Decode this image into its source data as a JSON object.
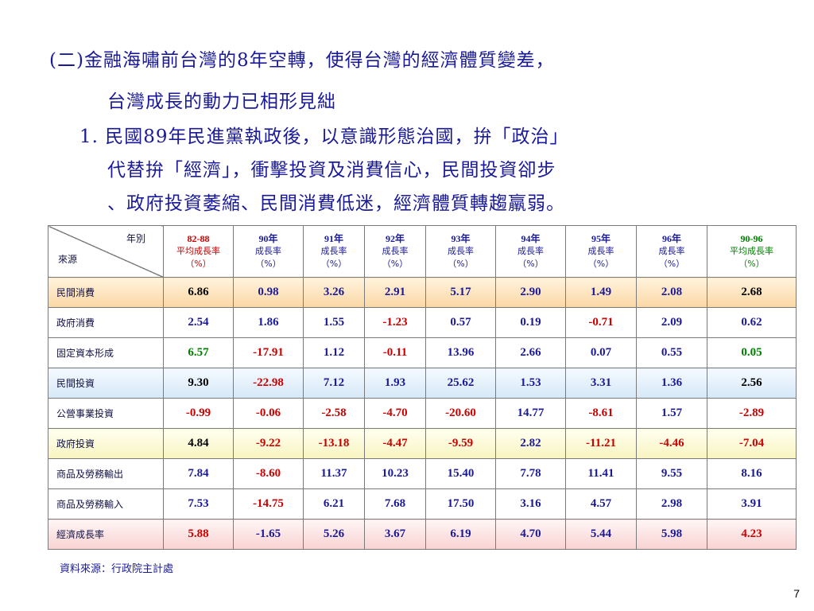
{
  "text": {
    "line1": "(二)金融海嘯前台灣的8年空轉，使得台灣的經濟體質變差，",
    "line2": "台灣成長的動力已相形見絀",
    "line3": "1. 民國89年民進黨執政後，以意識形態治國，拚「政治」",
    "line4": "代替拚「經濟」，衝擊投資及消費信心，民間投資卻步",
    "line5": "、政府投資萎縮、民間消費低迷，經濟體質轉趨羸弱。"
  },
  "table": {
    "corner_top": "年別",
    "corner_bottom": "來源",
    "headers": [
      {
        "top": "82-88",
        "mid": "平均成長率",
        "bot": "（%）",
        "color": "#cc0000"
      },
      {
        "top": "90年",
        "mid": "成長率",
        "bot": "（%）",
        "color": "#1a1a99"
      },
      {
        "top": "91年",
        "mid": "成長率",
        "bot": "（%）",
        "color": "#1a1a99"
      },
      {
        "top": "92年",
        "mid": "成長率",
        "bot": "（%）",
        "color": "#1a1a99"
      },
      {
        "top": "93年",
        "mid": "成長率",
        "bot": "（%）",
        "color": "#1a1a99"
      },
      {
        "top": "94年",
        "mid": "成長率",
        "bot": "（%）",
        "color": "#1a1a99"
      },
      {
        "top": "95年",
        "mid": "成長率",
        "bot": "（%）",
        "color": "#1a1a99"
      },
      {
        "top": "96年",
        "mid": "成長率",
        "bot": "（%）",
        "color": "#1a1a99"
      },
      {
        "top": "90-96",
        "mid": "平均成長率",
        "bot": "（%）",
        "color": "#008000"
      }
    ],
    "rows": [
      {
        "label": "民間消費",
        "values": [
          "6.86",
          "0.98",
          "3.26",
          "2.91",
          "5.17",
          "2.90",
          "1.49",
          "2.08",
          "2.68"
        ]
      },
      {
        "label": "政府消費",
        "values": [
          "2.54",
          "1.86",
          "1.55",
          "-1.23",
          "0.57",
          "0.19",
          "-0.71",
          "2.09",
          "0.62"
        ]
      },
      {
        "label": "固定資本形成",
        "values": [
          "6.57",
          "-17.91",
          "1.12",
          "-0.11",
          "13.96",
          "2.66",
          "0.07",
          "0.55",
          "0.05"
        ]
      },
      {
        "label": "民間投資",
        "values": [
          "9.30",
          "-22.98",
          "7.12",
          "1.93",
          "25.62",
          "1.53",
          "3.31",
          "1.36",
          "2.56"
        ]
      },
      {
        "label": "公營事業投資",
        "values": [
          "-0.99",
          "-0.06",
          "-2.58",
          "-4.70",
          "-20.60",
          "14.77",
          "-8.61",
          "1.57",
          "-2.89"
        ]
      },
      {
        "label": "政府投資",
        "values": [
          "4.84",
          "-9.22",
          "-13.18",
          "-4.47",
          "-9.59",
          "2.82",
          "-11.21",
          "-4.46",
          "-7.04"
        ]
      },
      {
        "label": "商品及勞務輸出",
        "values": [
          "7.84",
          "-8.60",
          "11.37",
          "10.23",
          "15.40",
          "7.78",
          "11.41",
          "9.55",
          "8.16"
        ]
      },
      {
        "label": "商品及勞務輸入",
        "values": [
          "7.53",
          "-14.75",
          "6.21",
          "7.68",
          "17.50",
          "3.16",
          "4.57",
          "2.98",
          "3.91"
        ]
      },
      {
        "label": "經濟成長率",
        "values": [
          "5.88",
          "-1.65",
          "5.26",
          "3.67",
          "6.19",
          "4.70",
          "5.44",
          "5.98",
          "4.23"
        ]
      }
    ]
  },
  "source": "資料來源：行政院主計處",
  "page_number": "7"
}
